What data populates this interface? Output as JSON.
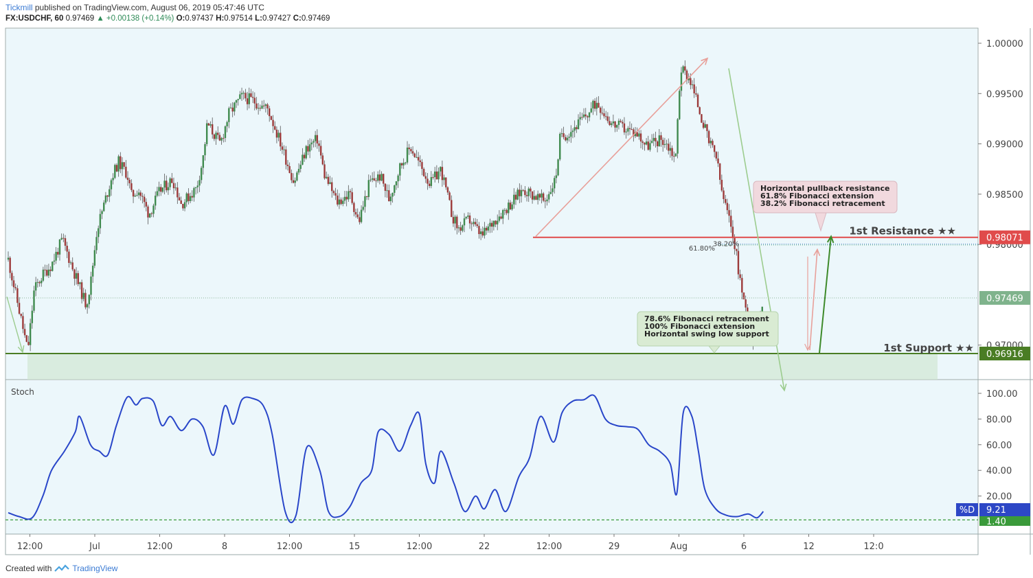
{
  "header": {
    "author": "Tickmill",
    "published_text": " published on TradingView.com, August 06, 2019 05:47:46 UTC",
    "symbol": "FX:USDCHF, 60",
    "last": "0.97469",
    "change": "▲ +0.00138 (+0.14%)",
    "open_label": "O:",
    "open": "0.97437",
    "high_label": "H:",
    "high": "0.97514",
    "low_label": "L:",
    "low": "0.97427",
    "close_label": "C:",
    "close": "0.97469"
  },
  "footer": {
    "created_with": "Created with",
    "brand": "TradingView"
  },
  "colors": {
    "bg": "#ecf7fb",
    "up": "#3f8a4e",
    "down": "#9c3a3a",
    "resistance": "#e04b4b",
    "support": "#4a7d24",
    "stoch": "#2946c9",
    "price_tag": "#7fb38c",
    "stoch_tag": "#2d47c6"
  },
  "price_axis": {
    "ticks": [
      {
        "v": 1.0,
        "label": "1.00000"
      },
      {
        "v": 0.995,
        "label": "0.99500"
      },
      {
        "v": 0.99,
        "label": "0.99000"
      },
      {
        "v": 0.985,
        "label": "0.98500"
      },
      {
        "v": 0.98,
        "label": "0.98000"
      },
      {
        "v": 0.97,
        "label": "0.97000"
      }
    ]
  },
  "stoch_axis": {
    "ticks": [
      {
        "v": 100,
        "label": "100.00"
      },
      {
        "v": 80,
        "label": "80.00"
      },
      {
        "v": 60,
        "label": "60.00"
      },
      {
        "v": 40,
        "label": "40.00"
      },
      {
        "v": 20,
        "label": "20.00"
      }
    ]
  },
  "time_axis": {
    "labels": [
      {
        "t": 1,
        "label": "12:00"
      },
      {
        "t": 4,
        "label": "Jul"
      },
      {
        "t": 7,
        "label": "12:00"
      },
      {
        "t": 10,
        "label": "8"
      },
      {
        "t": 13,
        "label": "12:00"
      },
      {
        "t": 16,
        "label": "15"
      },
      {
        "t": 19,
        "label": "12:00"
      },
      {
        "t": 22,
        "label": "22"
      },
      {
        "t": 25,
        "label": "12:00"
      },
      {
        "t": 28,
        "label": "29"
      },
      {
        "t": 31,
        "label": "Aug"
      },
      {
        "t": 34,
        "label": "6"
      },
      {
        "t": 37,
        "label": "12"
      },
      {
        "t": 40,
        "label": "12:0"
      }
    ]
  },
  "levels": {
    "resistance": {
      "value": 0.98071,
      "label": "1st Resistance ★★",
      "tag": "0.98071"
    },
    "support": {
      "value": 0.96916,
      "label": "1st Support ★★",
      "tag": "0.96916"
    },
    "current": {
      "value": 0.97469,
      "tag": "0.97469"
    },
    "fib_618": {
      "value": 0.97995,
      "label": "61.80%"
    },
    "fib_382": {
      "value": 0.98005,
      "label": "38.20%"
    }
  },
  "annotations": {
    "resistance_box": [
      "Horizontal pullback resistance",
      "61.8% Fibonacci extension",
      "38.2% Fibonacci retracement"
    ],
    "support_box": [
      "78.6% Fibonacci retracement",
      "100% Fibonacci extension",
      "Horizontal swing low support"
    ]
  },
  "stoch_panel": {
    "title": "Stoch",
    "d_label": "%D",
    "d_value": "9.21",
    "k_value": "1.40",
    "oversold_level": 1.4
  },
  "chart_data": {
    "type": "line",
    "title": "FX:USDCHF, 60",
    "xlabel": "",
    "ylabel": "",
    "ylim": [
      0.9665,
      1.0015
    ],
    "x_range": [
      0,
      41
    ],
    "price_path": [
      [
        0,
        0.9785
      ],
      [
        0.6,
        0.9725
      ],
      [
        0.9,
        0.9694
      ],
      [
        1.2,
        0.9755
      ],
      [
        1.6,
        0.977
      ],
      [
        2.0,
        0.978
      ],
      [
        2.5,
        0.9805
      ],
      [
        3.0,
        0.9775
      ],
      [
        3.6,
        0.974
      ],
      [
        3.8,
        0.976
      ],
      [
        4.1,
        0.9815
      ],
      [
        4.8,
        0.9868
      ],
      [
        5.1,
        0.9882
      ],
      [
        5.5,
        0.987
      ],
      [
        5.7,
        0.9848
      ],
      [
        6.0,
        0.9855
      ],
      [
        6.5,
        0.983
      ],
      [
        7.0,
        0.9853
      ],
      [
        7.6,
        0.9865
      ],
      [
        8.0,
        0.984
      ],
      [
        8.7,
        0.9856
      ],
      [
        9.0,
        0.9885
      ],
      [
        9.2,
        0.992
      ],
      [
        9.8,
        0.99
      ],
      [
        10.2,
        0.993
      ],
      [
        10.8,
        0.9947
      ],
      [
        11.3,
        0.9943
      ],
      [
        11.7,
        0.9938
      ],
      [
        12.0,
        0.9935
      ],
      [
        12.6,
        0.99
      ],
      [
        13.2,
        0.9862
      ],
      [
        13.8,
        0.9896
      ],
      [
        14.3,
        0.9905
      ],
      [
        14.6,
        0.987
      ],
      [
        15.2,
        0.9842
      ],
      [
        15.8,
        0.985
      ],
      [
        16.2,
        0.9822
      ],
      [
        16.7,
        0.9862
      ],
      [
        17.2,
        0.9868
      ],
      [
        17.6,
        0.9845
      ],
      [
        18.1,
        0.9877
      ],
      [
        18.6,
        0.9897
      ],
      [
        19.0,
        0.988
      ],
      [
        19.5,
        0.986
      ],
      [
        20.0,
        0.9875
      ],
      [
        20.5,
        0.983
      ],
      [
        20.8,
        0.9815
      ],
      [
        21.3,
        0.9825
      ],
      [
        21.9,
        0.9808
      ],
      [
        22.5,
        0.9825
      ],
      [
        23.1,
        0.9838
      ],
      [
        23.8,
        0.9855
      ],
      [
        24.2,
        0.985
      ],
      [
        24.8,
        0.9843
      ],
      [
        25.3,
        0.9865
      ],
      [
        25.5,
        0.9905
      ],
      [
        26.1,
        0.9915
      ],
      [
        26.8,
        0.993
      ],
      [
        27.2,
        0.9942
      ],
      [
        27.9,
        0.992
      ],
      [
        28.5,
        0.9915
      ],
      [
        29.1,
        0.991
      ],
      [
        29.5,
        0.9898
      ],
      [
        30.2,
        0.9905
      ],
      [
        30.6,
        0.9895
      ],
      [
        30.85,
        0.9885
      ],
      [
        31.0,
        0.995
      ],
      [
        31.1,
        0.9975
      ],
      [
        31.5,
        0.9965
      ],
      [
        32.0,
        0.993
      ],
      [
        32.4,
        0.99
      ],
      [
        32.7,
        0.989
      ],
      [
        33.0,
        0.985
      ],
      [
        33.5,
        0.981
      ],
      [
        33.9,
        0.9755
      ],
      [
        34.3,
        0.9712
      ],
      [
        34.5,
        0.9702
      ],
      [
        34.9,
        0.9749
      ]
    ],
    "series": [
      {
        "name": "%D",
        "values": [
          [
            0,
            7
          ],
          [
            0.5,
            4
          ],
          [
            1.1,
            3
          ],
          [
            1.6,
            20
          ],
          [
            2.0,
            40
          ],
          [
            2.6,
            55
          ],
          [
            3.1,
            70
          ],
          [
            3.3,
            82
          ],
          [
            3.8,
            60
          ],
          [
            4.2,
            55
          ],
          [
            4.6,
            52
          ],
          [
            5.0,
            75
          ],
          [
            5.5,
            97
          ],
          [
            5.9,
            91
          ],
          [
            6.2,
            96
          ],
          [
            6.7,
            94
          ],
          [
            7.1,
            75
          ],
          [
            7.5,
            82
          ],
          [
            8.0,
            71
          ],
          [
            8.5,
            80
          ],
          [
            9.0,
            74
          ],
          [
            9.5,
            52
          ],
          [
            10.0,
            90
          ],
          [
            10.4,
            76
          ],
          [
            10.8,
            95
          ],
          [
            11.3,
            96
          ],
          [
            11.8,
            90
          ],
          [
            12.2,
            68
          ],
          [
            12.8,
            8
          ],
          [
            13.3,
            5
          ],
          [
            13.8,
            58
          ],
          [
            14.4,
            40
          ],
          [
            14.8,
            8
          ],
          [
            15.3,
            4
          ],
          [
            15.8,
            12
          ],
          [
            16.3,
            30
          ],
          [
            16.8,
            40
          ],
          [
            17.1,
            70
          ],
          [
            17.6,
            68
          ],
          [
            18.1,
            55
          ],
          [
            18.6,
            75
          ],
          [
            19.0,
            84
          ],
          [
            19.3,
            45
          ],
          [
            19.7,
            30
          ],
          [
            20.0,
            55
          ],
          [
            20.6,
            30
          ],
          [
            21.1,
            8
          ],
          [
            21.6,
            20
          ],
          [
            22.0,
            10
          ],
          [
            22.5,
            25
          ],
          [
            23.0,
            8
          ],
          [
            23.6,
            35
          ],
          [
            24.1,
            50
          ],
          [
            24.6,
            82
          ],
          [
            25.2,
            62
          ],
          [
            25.6,
            85
          ],
          [
            26.1,
            94
          ],
          [
            26.6,
            95
          ],
          [
            27.1,
            98
          ],
          [
            27.6,
            80
          ],
          [
            28.1,
            75
          ],
          [
            28.6,
            74
          ],
          [
            29.1,
            72
          ],
          [
            29.6,
            60
          ],
          [
            30.1,
            55
          ],
          [
            30.6,
            45
          ],
          [
            30.9,
            22
          ],
          [
            31.2,
            85
          ],
          [
            31.6,
            82
          ],
          [
            31.9,
            55
          ],
          [
            32.2,
            25
          ],
          [
            32.7,
            10
          ],
          [
            33.2,
            5
          ],
          [
            33.7,
            4
          ],
          [
            34.2,
            6
          ],
          [
            34.6,
            3
          ],
          [
            34.9,
            8
          ]
        ]
      }
    ]
  }
}
